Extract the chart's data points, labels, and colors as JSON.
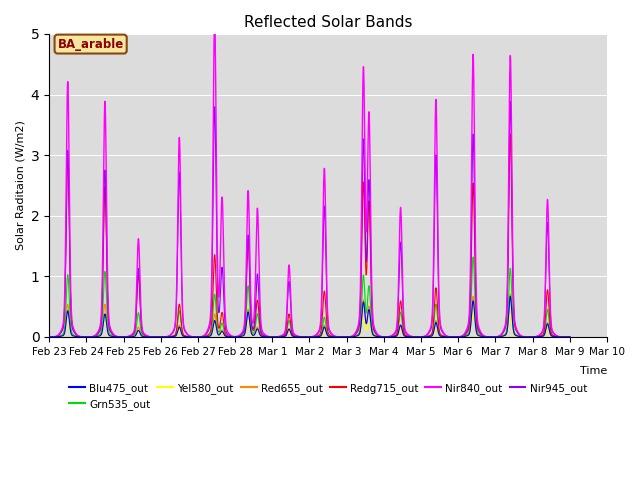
{
  "title": "Reflected Solar Bands",
  "ylabel": "Solar Raditaion (W/m2)",
  "xlabel": "Time",
  "ylim": [
    0,
    5.0
  ],
  "bg_color": "#dcdcdc",
  "annotation_text": "BA_arable",
  "annotation_bg": "#f5e6a0",
  "annotation_border": "#8B4513",
  "annotation_text_color": "#8B0000",
  "series": {
    "Blu475_out": {
      "color": "#0000ff",
      "lw": 0.8
    },
    "Grn535_out": {
      "color": "#00dd00",
      "lw": 0.8
    },
    "Yel580_out": {
      "color": "#ffff00",
      "lw": 0.8
    },
    "Red655_out": {
      "color": "#ff8800",
      "lw": 0.8
    },
    "Redg715_out": {
      "color": "#ff0000",
      "lw": 0.8
    },
    "Nir840_out": {
      "color": "#ff00ff",
      "lw": 1.0
    },
    "Nir945_out": {
      "color": "#8800ff",
      "lw": 0.8
    }
  },
  "xtick_labels": [
    "Feb 23",
    "Feb 24",
    "Feb 25",
    "Feb 26",
    "Feb 27",
    "Feb 28",
    "Mar 1",
    "Mar 2",
    "Mar 3",
    "Mar 4",
    "Mar 5",
    "Mar 6",
    "Mar 7",
    "Mar 8",
    "Mar 9",
    "Mar 10"
  ],
  "peaks": [
    {
      "t": 0.5,
      "nir840": 3.9,
      "nir945": 2.85,
      "redg": 2.8,
      "red": 0.5,
      "grn": 0.95,
      "yel": 0.3,
      "blu": 0.4
    },
    {
      "t": 1.5,
      "nir840": 3.6,
      "nir945": 2.55,
      "redg": 2.3,
      "red": 0.5,
      "grn": 1.0,
      "yel": 0.3,
      "blu": 0.35
    },
    {
      "t": 2.4,
      "nir840": 1.5,
      "nir945": 1.05,
      "redg": 0.95,
      "red": 0.15,
      "grn": 0.37,
      "yel": 0.1,
      "blu": 0.1
    },
    {
      "t": 3.5,
      "nir840": 3.05,
      "nir945": 2.52,
      "redg": 0.5,
      "red": 0.18,
      "grn": 0.4,
      "yel": 0.1,
      "blu": 0.15
    },
    {
      "t": 4.45,
      "nir840": 4.85,
      "nir945": 3.5,
      "redg": 1.25,
      "red": 0.35,
      "grn": 0.65,
      "yel": 0.2,
      "blu": 0.25
    },
    {
      "t": 4.65,
      "nir840": 2.05,
      "nir945": 1.0,
      "redg": 0.35,
      "red": 0.1,
      "grn": 0.2,
      "yel": 0.06,
      "blu": 0.08
    },
    {
      "t": 5.35,
      "nir840": 2.22,
      "nir945": 1.55,
      "redg": 1.5,
      "red": 0.42,
      "grn": 0.78,
      "yel": 0.25,
      "blu": 0.38
    },
    {
      "t": 5.6,
      "nir840": 1.95,
      "nir945": 0.95,
      "redg": 0.55,
      "red": 0.15,
      "grn": 0.35,
      "yel": 0.1,
      "blu": 0.12
    },
    {
      "t": 6.45,
      "nir840": 1.1,
      "nir945": 0.85,
      "redg": 0.35,
      "red": 0.12,
      "grn": 0.25,
      "yel": 0.08,
      "blu": 0.12
    },
    {
      "t": 7.4,
      "nir840": 2.58,
      "nir945": 2.0,
      "redg": 0.7,
      "red": 0.18,
      "grn": 0.3,
      "yel": 0.1,
      "blu": 0.15
    },
    {
      "t": 8.45,
      "nir840": 4.02,
      "nir945": 2.95,
      "redg": 2.3,
      "red": 0.55,
      "grn": 0.92,
      "yel": 0.28,
      "blu": 0.52
    },
    {
      "t": 8.6,
      "nir840": 3.3,
      "nir945": 2.3,
      "redg": 2.0,
      "red": 0.45,
      "grn": 0.75,
      "yel": 0.2,
      "blu": 0.4
    },
    {
      "t": 9.45,
      "nir840": 1.98,
      "nir945": 1.45,
      "redg": 0.55,
      "red": 0.18,
      "grn": 0.38,
      "yel": 0.1,
      "blu": 0.18
    },
    {
      "t": 10.4,
      "nir840": 3.63,
      "nir945": 2.78,
      "redg": 0.75,
      "red": 0.25,
      "grn": 0.5,
      "yel": 0.15,
      "blu": 0.22
    },
    {
      "t": 11.4,
      "nir840": 4.32,
      "nir945": 3.1,
      "redg": 2.35,
      "red": 0.62,
      "grn": 1.22,
      "yel": 0.35,
      "blu": 0.55
    },
    {
      "t": 12.4,
      "nir840": 4.3,
      "nir945": 3.6,
      "redg": 3.1,
      "red": 0.65,
      "grn": 1.05,
      "yel": 0.35,
      "blu": 0.62
    },
    {
      "t": 13.4,
      "nir840": 2.1,
      "nir945": 1.75,
      "redg": 0.72,
      "red": 0.22,
      "grn": 0.42,
      "yel": 0.12,
      "blu": 0.2
    }
  ]
}
